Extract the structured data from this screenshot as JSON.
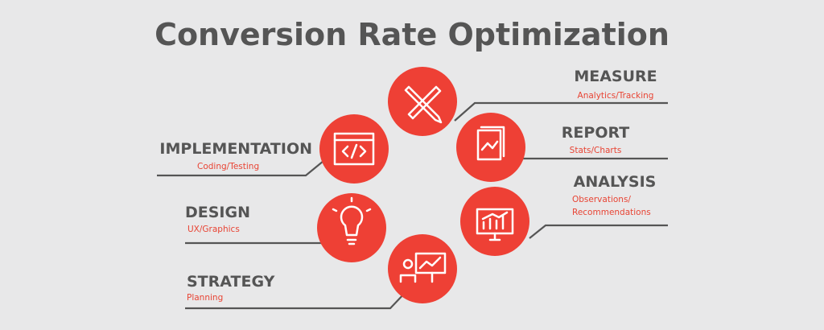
{
  "header": {
    "title": "Conversion Rate Optimization"
  },
  "nodes": [
    {
      "label": "MEASURE",
      "sublabel": [
        "Analytics/Tracking"
      ]
    },
    {
      "label": "REPORT",
      "sublabel": [
        "Stats/Charts"
      ]
    },
    {
      "label": "ANALYSIS",
      "sublabel": [
        "Observations/",
        "Recommendations"
      ]
    },
    {
      "label": "STRATEGY",
      "sublabel": [
        "Planning"
      ]
    },
    {
      "label": "DESIGN",
      "sublabel": [
        "UX/Graphics"
      ]
    },
    {
      "label": "IMPLEMENTATION",
      "sublabel": [
        "Coding/Testing"
      ]
    }
  ]
}
